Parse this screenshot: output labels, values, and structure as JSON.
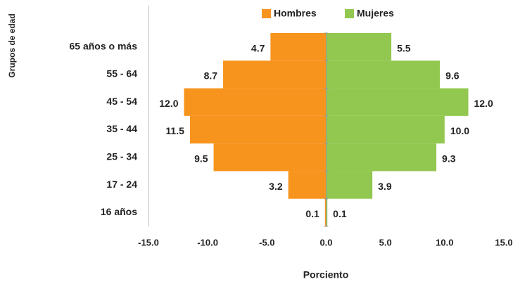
{
  "chart_data": {
    "type": "pyramid",
    "categories": [
      "65 años o  más",
      "55 - 64",
      "45 - 54",
      "35 - 44",
      "25 - 34",
      "17 - 24",
      "16 años"
    ],
    "series": [
      {
        "name": "Hombres",
        "color": "#f7941d",
        "values": [
          -4.7,
          -8.7,
          -12.0,
          -11.5,
          -9.5,
          -3.2,
          -0.1
        ],
        "value_labels": [
          "4.7",
          "8.7",
          "12.0",
          "11.5",
          "9.5",
          "3.2",
          "0.1"
        ]
      },
      {
        "name": "Mujeres",
        "color": "#92c84f",
        "values": [
          5.5,
          9.6,
          12.0,
          10.0,
          9.3,
          3.9,
          0.1
        ],
        "value_labels": [
          "5.5",
          "9.6",
          "12.0",
          "10.0",
          "9.3",
          "3.9",
          "0.1"
        ]
      }
    ],
    "xlim": [
      -15,
      15
    ],
    "xticks": [
      {
        "value": -15,
        "label": "-15.0"
      },
      {
        "value": -10,
        "label": "-10.0"
      },
      {
        "value": -5,
        "label": "-5.0"
      },
      {
        "value": 0,
        "label": "0.0"
      },
      {
        "value": 5,
        "label": "5.0"
      },
      {
        "value": 10,
        "label": "10.0"
      },
      {
        "value": 15,
        "label": "15.0"
      }
    ],
    "xlabel": "Porciento",
    "ylabel": "Grupos de edad",
    "legend": "top"
  }
}
